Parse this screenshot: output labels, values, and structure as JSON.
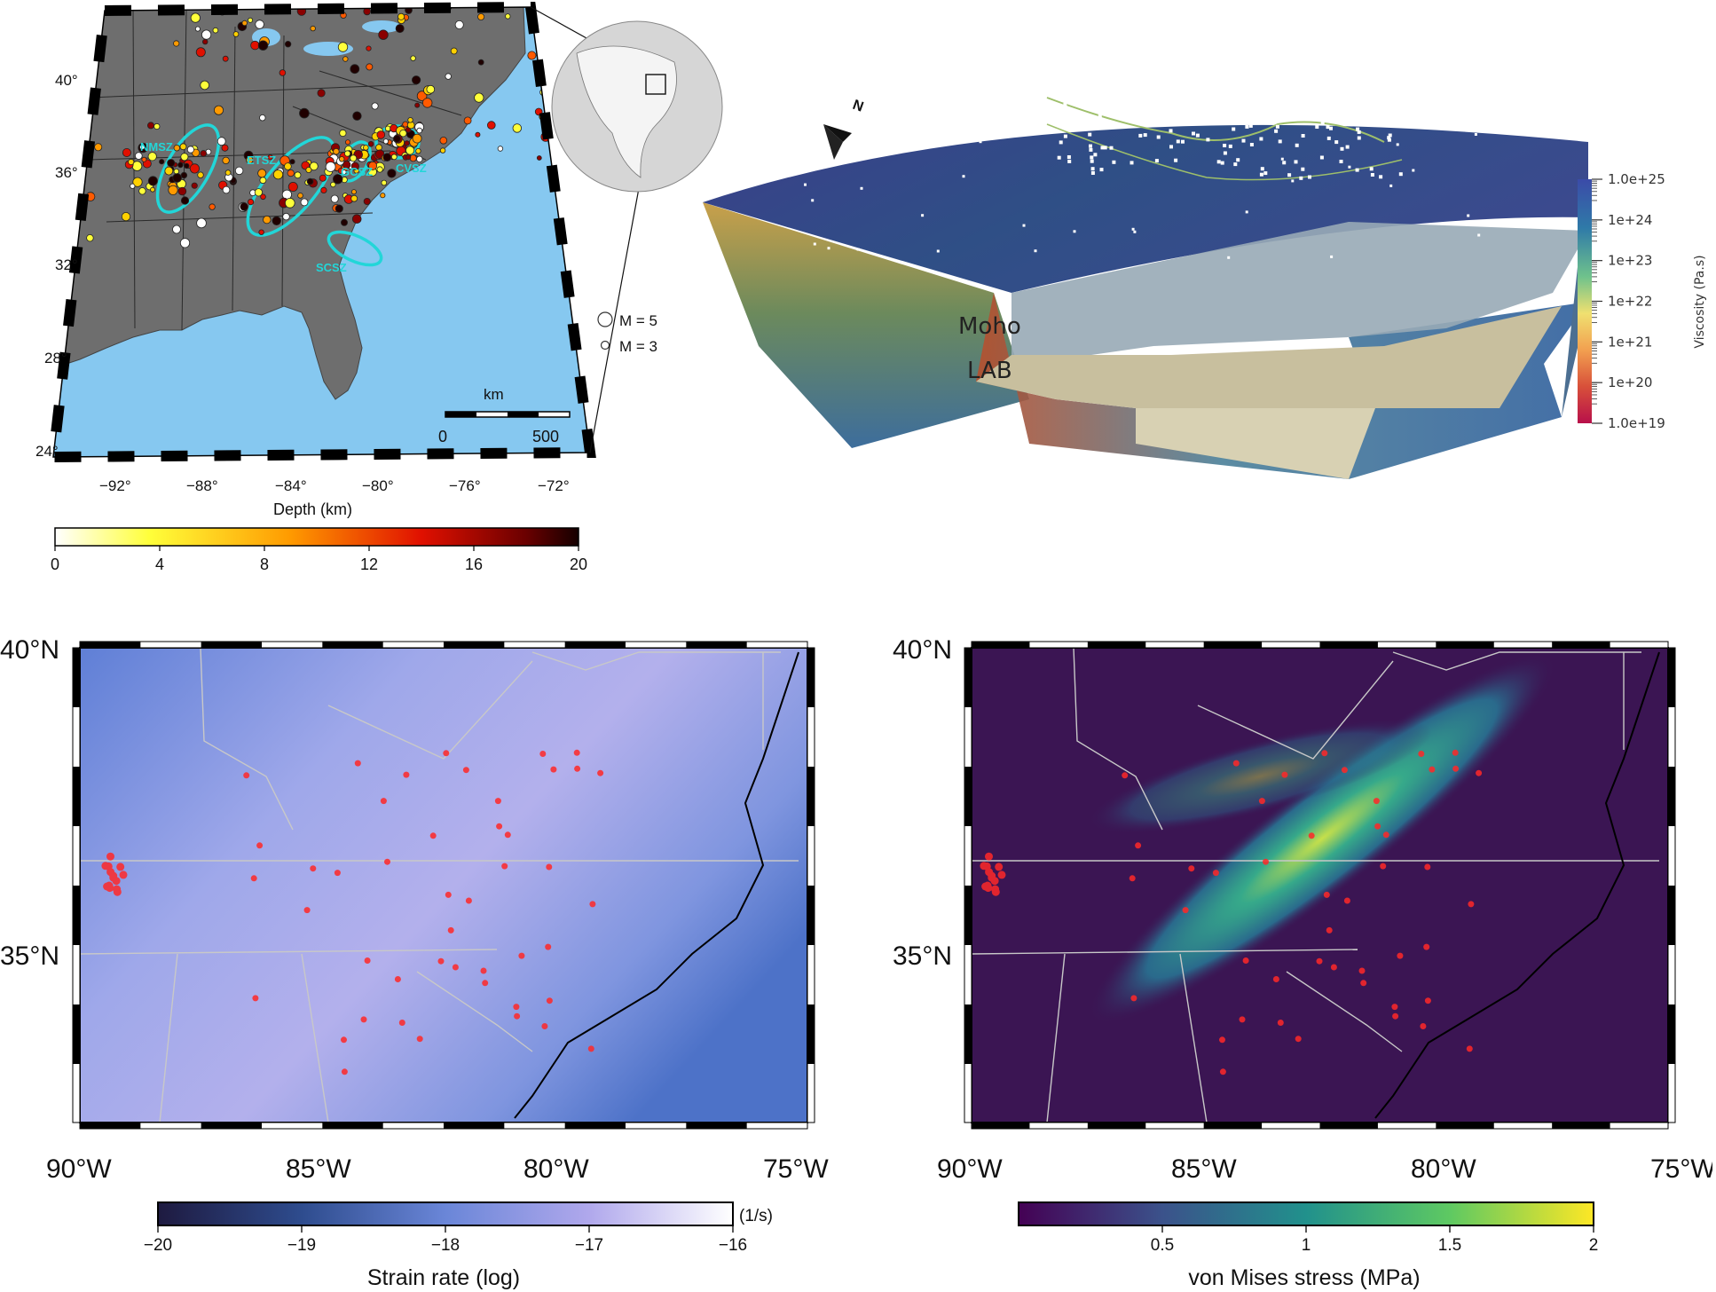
{
  "panel_a": {
    "lat_ticks": [
      "40°",
      "36°",
      "32°",
      "28°",
      "24°"
    ],
    "lon_ticks": [
      "−92°",
      "−88°",
      "−84°",
      "−80°",
      "−76°",
      "−72°"
    ],
    "zones": [
      "NMSZ",
      "ETSZ",
      "GCSZ",
      "CVSZ",
      "SCSZ"
    ],
    "legend": {
      "m5": "M = 5",
      "m3": "M = 3"
    },
    "scalebar": {
      "unit": "km",
      "start": "0",
      "end": "500"
    },
    "depth_colorbar": {
      "label": "Depth (km)",
      "ticks": [
        "0",
        "4",
        "8",
        "12",
        "16",
        "20"
      ],
      "range": [
        0,
        20
      ]
    }
  },
  "panel_b": {
    "north_label": "N",
    "moho_label": "Moho",
    "lab_label": "LAB",
    "viscosity_colorbar": {
      "label": "Viscosity (Pa.s)",
      "ticks": [
        "1.0e+25",
        "1e+24",
        "1e+23",
        "1e+22",
        "1e+21",
        "1e+20",
        "1.0e+19"
      ],
      "scale": "log"
    }
  },
  "panel_c": {
    "lat_ticks": [
      "40°N",
      "35°N"
    ],
    "lon_ticks": [
      "90°W",
      "85°W",
      "80°W",
      "75°W"
    ],
    "colorbar": {
      "label": "Strain rate (log)",
      "unit": "(1/s)",
      "ticks": [
        "−20",
        "−19",
        "−18",
        "−17",
        "−16"
      ],
      "range": [
        -20,
        -16
      ]
    }
  },
  "panel_d": {
    "lat_ticks": [
      "40°N",
      "35°N"
    ],
    "lon_ticks": [
      "90°W",
      "85°W",
      "80°W",
      "75°W"
    ],
    "colorbar": {
      "label": "von Mises stress (MPa)",
      "ticks": [
        "0.5",
        "1",
        "1.5",
        "2"
      ],
      "range": [
        0,
        2
      ]
    }
  },
  "colors": {
    "ocean": "#86c8f0",
    "land": "#6f6f6f",
    "zone": "#22d6d8",
    "quake": "#ff2020"
  }
}
